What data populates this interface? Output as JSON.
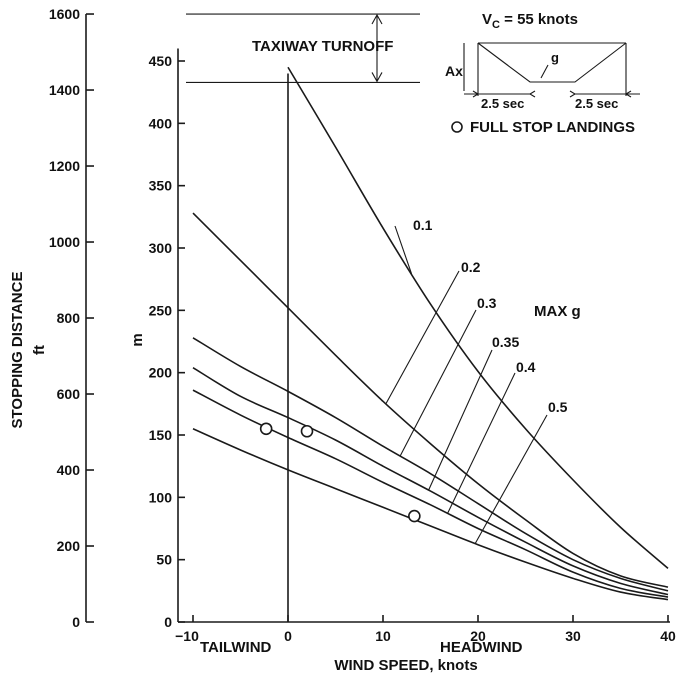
{
  "chart_data": {
    "type": "line",
    "title": "",
    "xlabel": "WIND SPEED, knots",
    "x_range": [
      -10,
      40
    ],
    "x_ticks": [
      "-10",
      "0",
      "10",
      "20",
      "30",
      "40"
    ],
    "x_side_labels": {
      "left": "TAILWIND",
      "right": "HEADWIND"
    },
    "ylabel_m": "m",
    "y_range_m": [
      0,
      450
    ],
    "y_ticks_m": [
      "0",
      "50",
      "100",
      "150",
      "200",
      "250",
      "300",
      "350",
      "400",
      "450"
    ],
    "ylabel_ft": "STOPPING DISTANCE",
    "ylabel_ft_unit": "ft",
    "y_range_ft": [
      0,
      1600
    ],
    "y_ticks_ft": [
      "0",
      "200",
      "400",
      "600",
      "800",
      "1000",
      "1200",
      "1400",
      "1600"
    ],
    "legend_title": "MAX g",
    "x": [
      -10,
      -5,
      0,
      5,
      10,
      15,
      20,
      25,
      30,
      35,
      40
    ],
    "series": [
      {
        "name": "0.1",
        "x": [
          0,
          5,
          10,
          15,
          20,
          25,
          30,
          35,
          40
        ],
        "values": [
          445,
          381,
          316,
          255,
          201,
          155,
          114,
          76,
          43
        ]
      },
      {
        "name": "0.2",
        "values": [
          328,
          290,
          252,
          214,
          177,
          143,
          111,
          82,
          55,
          37,
          28
        ]
      },
      {
        "name": "0.3",
        "values": [
          228,
          205,
          185,
          164,
          141,
          119,
          95,
          71,
          50,
          35,
          25
        ]
      },
      {
        "name": "0.35",
        "values": [
          204,
          181,
          164,
          146,
          125,
          105,
          84,
          64,
          45,
          31,
          22
        ]
      },
      {
        "name": "0.4",
        "values": [
          186,
          166,
          148,
          131,
          112,
          94,
          75,
          58,
          40,
          27,
          20
        ]
      },
      {
        "name": "0.5",
        "values": [
          155,
          138,
          122,
          107,
          92,
          77,
          62,
          48,
          35,
          24,
          18
        ]
      }
    ],
    "full_stop_landings": {
      "label": "FULL STOP LANDINGS",
      "points": [
        {
          "x": -2.3,
          "y": 155
        },
        {
          "x": 2,
          "y": 153
        },
        {
          "x": 13.3,
          "y": 85
        }
      ]
    },
    "taxiway_turnoff": {
      "label": "TAXIWAY TURNOFF",
      "y_upper": 1600,
      "y_lower": 1420
    },
    "inset": {
      "vc_label": "V",
      "vc_sub": "C",
      "vc_rest": " = 55 knots",
      "ax_label": "Ax",
      "g_label": "g",
      "left_time": "2.5 sec",
      "right_time": "2.5 sec"
    },
    "grid": false
  }
}
